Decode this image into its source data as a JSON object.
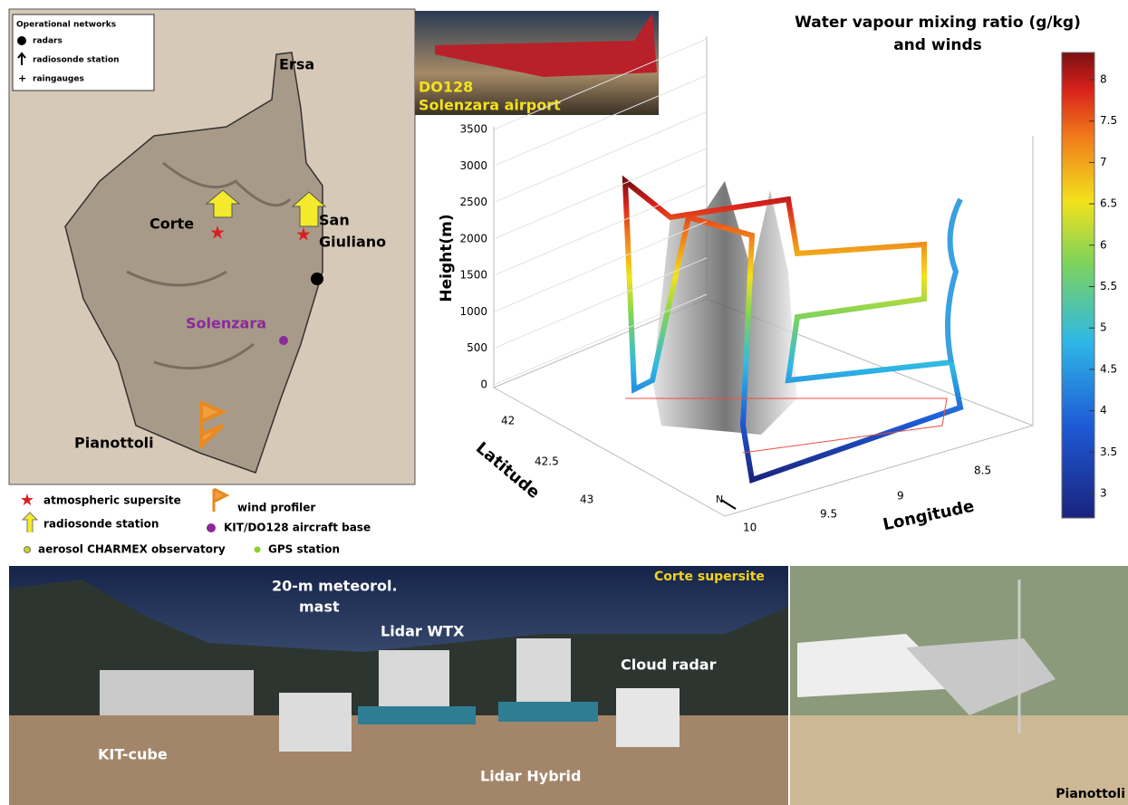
{
  "map": {
    "legend_title": "Operational networks",
    "legend": [
      "radars",
      "radiosonde station",
      "raingauges"
    ],
    "places": [
      "Ersa",
      "Corte",
      "Solenzara",
      "Pianottoli"
    ],
    "san_giuliano": [
      "San",
      "Giuliano"
    ]
  },
  "map_legend": [
    "atmospheric supersite",
    "wind profiler",
    "radiosonde station",
    "KIT/DO128 aircraft base",
    "aerosol CHARMEX observatory",
    "GPS station"
  ],
  "aircraft_photo": {
    "caption": [
      "DO128",
      "Solenzara airport"
    ]
  },
  "plot": {
    "title": [
      "Water vapour mixing ratio (g/kg)",
      "and winds"
    ],
    "z_label": "Height(m)",
    "z_ticks": [
      "3500",
      "3000",
      "2500",
      "2000",
      "1500",
      "1000",
      "500",
      "0"
    ],
    "x_label": "Latitude",
    "x_ticks": [
      "42",
      "42.5",
      "43"
    ],
    "y_label": "Longitude",
    "y_ticks": [
      "10",
      "9.5",
      "9",
      "8.5"
    ],
    "north": "N",
    "colorbar_ticks": [
      "8",
      "7.5",
      "7",
      "6.5",
      "6",
      "5.5",
      "5",
      "4.5",
      "4",
      "3.5",
      "3"
    ]
  },
  "site_photo": {
    "mast": [
      "20-m meteorol.",
      "mast"
    ],
    "labels": [
      "Corte supersite",
      "Lidar WTX",
      "Cloud radar",
      "KIT-cube",
      "Lidar Hybrid"
    ]
  },
  "pianottoli_photo": {
    "label": "Pianottoli"
  }
}
